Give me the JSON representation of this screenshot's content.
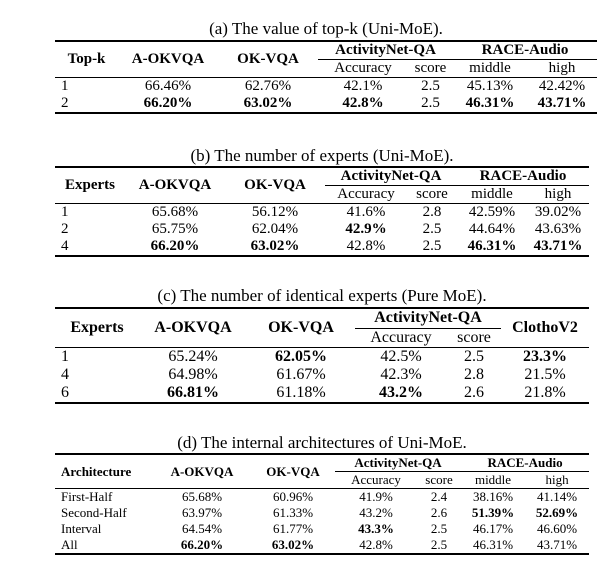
{
  "table_a": {
    "caption": "(a) The value of top-k (Uni-MoE).",
    "headers": [
      "Top-k",
      "A-OKVQA",
      "OK-VQA",
      "ActivityNet-QA",
      "RACE-Audio"
    ],
    "subheaders": [
      "Accuracy",
      "score",
      "middle",
      "high"
    ],
    "rows": [
      [
        "1",
        "66.46%",
        "62.76%",
        "42.1%",
        "2.5",
        "45.13%",
        "42.42%"
      ],
      [
        "2",
        "66.20%",
        "63.02%",
        "42.8%",
        "2.5",
        "46.31%",
        "43.71%"
      ]
    ]
  },
  "table_b": {
    "caption": "(b) The number of experts (Uni-MoE).",
    "headers": [
      "Experts",
      "A-OKVQA",
      "OK-VQA",
      "ActivityNet-QA",
      "RACE-Audio"
    ],
    "subheaders": [
      "Accuracy",
      "score",
      "middle",
      "high"
    ],
    "rows": [
      [
        "1",
        "65.68%",
        "56.12%",
        "41.6%",
        "2.8",
        "42.59%",
        "39.02%"
      ],
      [
        "2",
        "65.75%",
        "62.04%",
        "42.9%",
        "2.5",
        "44.64%",
        "43.63%"
      ],
      [
        "4",
        "66.20%",
        "63.02%",
        "42.8%",
        "2.5",
        "46.31%",
        "43.71%"
      ]
    ]
  },
  "table_c": {
    "caption": "(c) The number of identical experts (Pure MoE).",
    "headers": [
      "Experts",
      "A-OKVQA",
      "OK-VQA",
      "ActivityNet-QA",
      "ClothoV2"
    ],
    "subheaders": [
      "Accuracy",
      "score"
    ],
    "rows": [
      [
        "1",
        "65.24%",
        "62.05%",
        "42.5%",
        "2.5",
        "23.3%"
      ],
      [
        "4",
        "64.98%",
        "61.67%",
        "42.3%",
        "2.8",
        "21.5%"
      ],
      [
        "6",
        "66.81%",
        "61.18%",
        "43.2%",
        "2.6",
        "21.8%"
      ]
    ]
  },
  "table_d": {
    "caption": "(d) The internal architectures of Uni-MoE.",
    "headers": [
      "Architecture",
      "A-OKVQA",
      "OK-VQA",
      "ActivityNet-QA",
      "RACE-Audio"
    ],
    "subheaders": [
      "Accuracy",
      "score",
      "middle",
      "high"
    ],
    "rows": [
      [
        "First-Half",
        "65.68%",
        "60.96%",
        "41.9%",
        "2.4",
        "38.16%",
        "41.14%"
      ],
      [
        "Second-Half",
        "63.97%",
        "61.33%",
        "43.2%",
        "2.6",
        "51.39%",
        "52.69%"
      ],
      [
        "Interval",
        "64.54%",
        "61.77%",
        "43.3%",
        "2.5",
        "46.17%",
        "46.60%"
      ],
      [
        "All",
        "66.20%",
        "63.02%",
        "42.8%",
        "2.5",
        "46.31%",
        "43.71%"
      ]
    ]
  }
}
